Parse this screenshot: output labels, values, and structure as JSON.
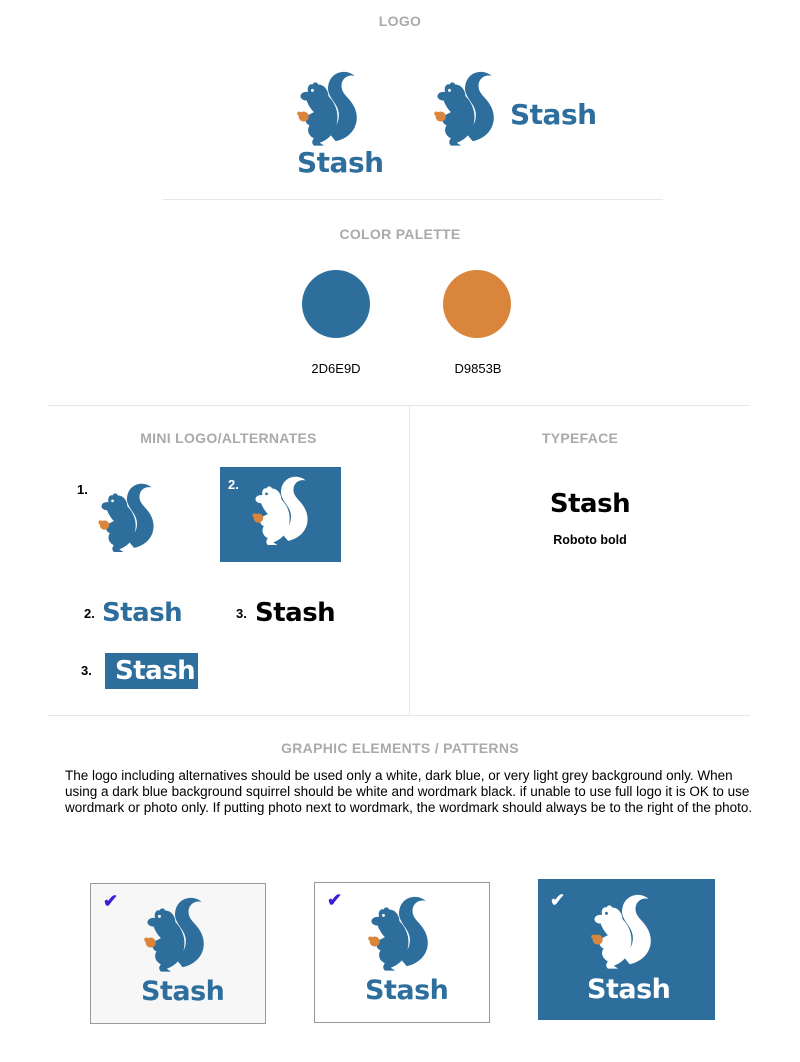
{
  "colors": {
    "blue": "#2D6E9D",
    "orange": "#D9853B",
    "title_grey": "#aaaaaa",
    "light_grey_bg": "#f7f7f7",
    "check_purple": "#3b1fd6"
  },
  "sections": {
    "logo_title": "LOGO",
    "palette_title": "COLOR PALETTE",
    "mini_title": "MINI LOGO/ALTERNATES",
    "typeface_title": "TYPEFACE",
    "graphic_title": "GRAPHIC ELEMENTS / PATTERNS"
  },
  "logo": {
    "wordmark": "Stash",
    "icon": "squirrel-icon"
  },
  "palette": [
    {
      "hex": "2D6E9D",
      "color": "#2D6E9D"
    },
    {
      "hex": "D9853B",
      "color": "#D9853B"
    }
  ],
  "mini": {
    "n1": "1.",
    "n2_box": "2.",
    "n2_word": "2.",
    "n3_word": "3.",
    "n3_box": "3."
  },
  "typeface": {
    "sample": "Stash",
    "name": "Roboto bold"
  },
  "graphic": {
    "paragraph": "The logo including alternatives should be used only a white, dark blue, or very light grey background only. When using a dark blue background squirrel should be white and wordmark black. if unable to use full logo it is OK to use wordmark or photo only. If putting photo next to wordmark, the wordmark should always be to the right of the photo.",
    "check": "✔"
  }
}
